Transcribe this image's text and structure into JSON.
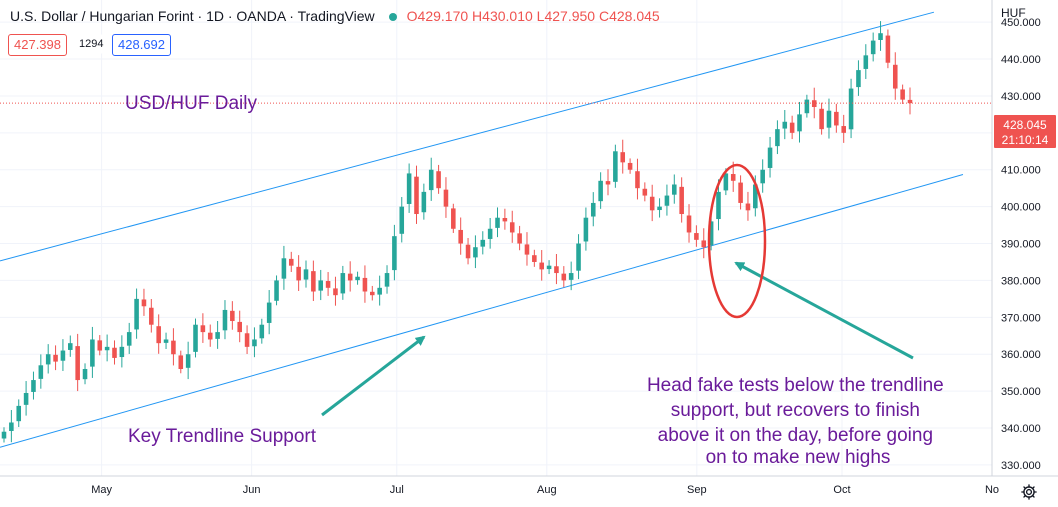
{
  "header": {
    "symbol_line": "U.S. Dollar / Hungarian Forint · 1D · OANDA · TradingView",
    "o_label": "O",
    "o_value": "429.170",
    "h_label": "H",
    "h_value": "430.010",
    "l_label": "L",
    "l_value": "427.950",
    "c_label": "C",
    "c_value": "428.045"
  },
  "trade": {
    "sell_price": "427.398",
    "spread": "1294",
    "buy_price": "428.692"
  },
  "price_axis": {
    "currency": "HUF",
    "current_price": "428.045",
    "countdown": "21:10:14"
  },
  "colors": {
    "up": "#26a69a",
    "down": "#ef5350",
    "trendline": "#2196f3",
    "annotation_text": "#6a1b9a",
    "arrow": "#26a69a",
    "highlight": "#e53935"
  },
  "annotations": {
    "title": "USD/HUF Daily",
    "support_label": "Key Trendline Support",
    "note_lines": [
      "Head fake tests below the trendline",
      "support, but recovers to finish",
      "above it on the day, before going",
      "on to make new highs"
    ]
  },
  "icons": {
    "settings": "gear-icon"
  },
  "chart_data": {
    "type": "candlestick",
    "symbol": "USD/HUF",
    "interval": "1D",
    "ylim": [
      327,
      456
    ],
    "yticks": [
      330,
      340,
      350,
      360,
      370,
      380,
      390,
      400,
      410,
      420,
      430,
      440,
      450
    ],
    "y_tick_labels": [
      "330.000",
      "340.000",
      "350.000",
      "360.000",
      "370.000",
      "380.000",
      "390.000",
      "400.000",
      "410.000",
      "420.000",
      "430.000",
      "440.000",
      "450.000"
    ],
    "x_ticks": [
      {
        "label": "May",
        "date": "2021-05-01"
      },
      {
        "label": "Jun",
        "date": "2021-06-01"
      },
      {
        "label": "Jul",
        "date": "2021-07-01"
      },
      {
        "label": "Aug",
        "date": "2021-08-01"
      },
      {
        "label": "Sep",
        "date": "2021-09-01"
      },
      {
        "label": "Oct",
        "date": "2021-10-01"
      },
      {
        "label": "No",
        "date": "2021-11-01"
      }
    ],
    "x_range": [
      "2021-04-10",
      "2021-11-01"
    ],
    "upper_trendline": [
      [
        "2021-04-10",
        385.3
      ],
      [
        "2021-10-20",
        452.7
      ]
    ],
    "lower_trendline": [
      [
        "2021-04-10",
        334.8
      ],
      [
        "2021-10-26",
        408.7
      ]
    ],
    "current_price": 428.045,
    "closes": [
      339.0,
      341.5,
      346.0,
      349.5,
      353.0,
      357.0,
      360.0,
      358.0,
      361.0,
      363.0,
      353.0,
      356.0,
      364.0,
      361.0,
      362.0,
      359.0,
      362.0,
      366.0,
      375.0,
      373.0,
      368.0,
      363.0,
      364.0,
      360.0,
      356.0,
      360.0,
      368.0,
      366.0,
      364.0,
      366.0,
      372.0,
      369.0,
      366.0,
      362.0,
      364.0,
      368.0,
      374.0,
      380.0,
      386.0,
      384.0,
      380.0,
      383.0,
      377.0,
      380.0,
      378.0,
      376.0,
      382.0,
      380.0,
      381.0,
      377.0,
      376.0,
      378.0,
      382.0,
      392.0,
      400.0,
      409.0,
      398.0,
      404.0,
      410.0,
      405.0,
      400.0,
      394.0,
      390.0,
      386.0,
      389.0,
      391.0,
      394.0,
      397.0,
      396.0,
      393.0,
      390.0,
      387.0,
      385.0,
      383.0,
      384.0,
      382.0,
      380.0,
      382.0,
      390.0,
      397.0,
      401.0,
      407.0,
      406.0,
      415.0,
      412.0,
      410.0,
      405.0,
      403.0,
      399.0,
      400.0,
      403.0,
      406.0,
      398.0,
      393.0,
      391.0,
      389.0,
      396.0,
      404.0,
      409.0,
      407.0,
      401.0,
      399.0,
      406.0,
      410.0,
      416.0,
      421.0,
      423.0,
      420.0,
      425.0,
      429.0,
      427.0,
      421.0,
      426.0,
      422.0,
      420.0,
      432.0,
      437.0,
      441.0,
      445.0,
      447.0,
      439.0,
      432.0,
      429.0,
      428.045
    ]
  }
}
